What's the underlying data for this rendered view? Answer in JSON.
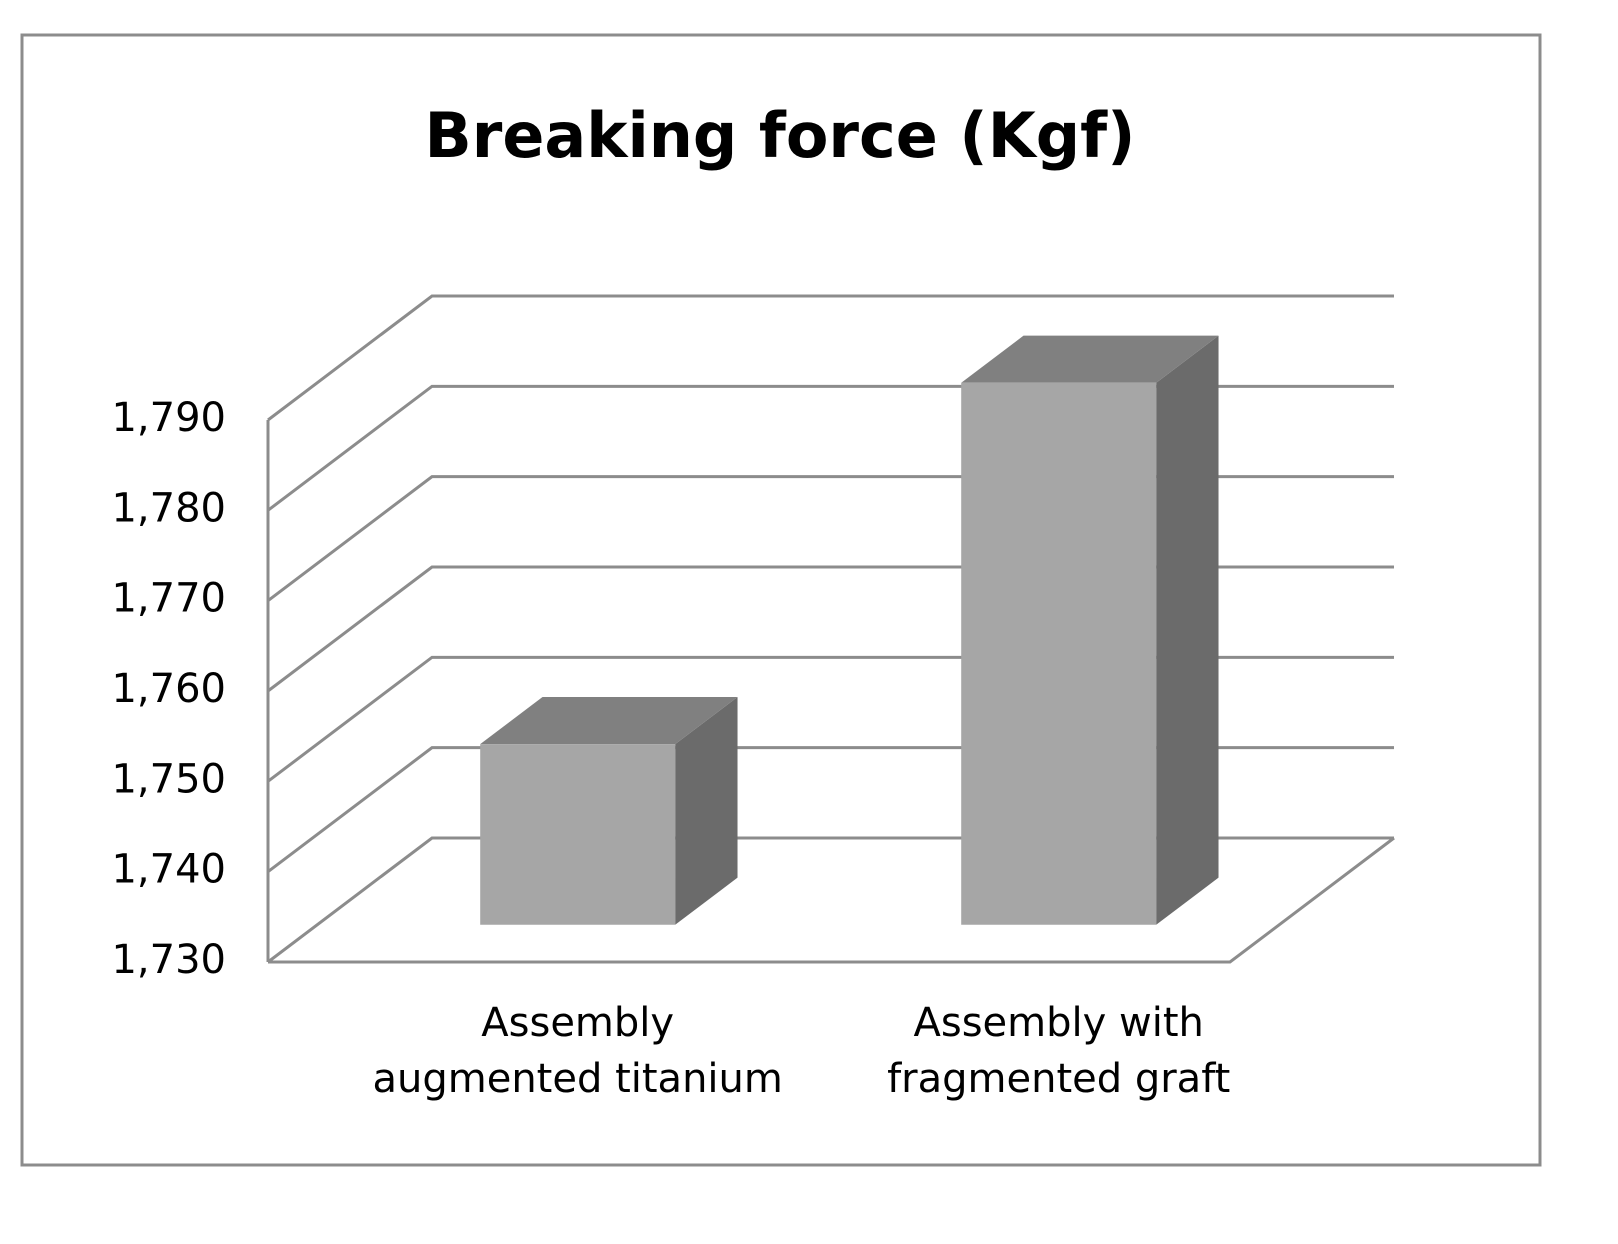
{
  "chart_data": {
    "type": "bar3d",
    "title": "Breaking force (Kgf)",
    "categories": [
      "Assembly augmented titanium",
      "Assembly with fragmented graft"
    ],
    "values": [
      1750,
      1790
    ],
    "colors": {
      "front": "#a6a6a6",
      "top": "#808080",
      "side": "#6b6b6b"
    },
    "ylim": [
      1730,
      1790
    ],
    "yticks": [
      {
        "value": 1730,
        "label": "1,730"
      },
      {
        "value": 1740,
        "label": "1,740"
      },
      {
        "value": 1750,
        "label": "1,750"
      },
      {
        "value": 1760,
        "label": "1,760"
      },
      {
        "value": 1770,
        "label": "1,770"
      },
      {
        "value": 1780,
        "label": "1,780"
      },
      {
        "value": 1790,
        "label": "1,790"
      }
    ],
    "grid": true
  }
}
